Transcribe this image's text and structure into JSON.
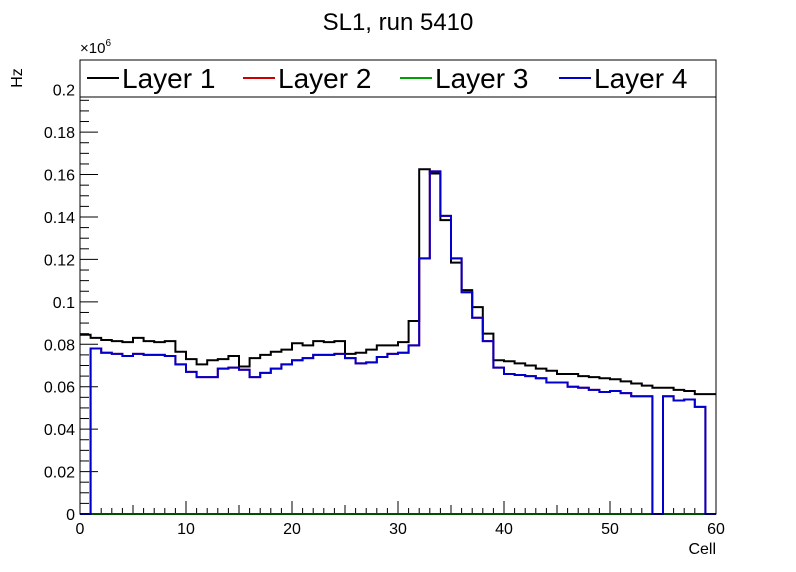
{
  "chart_data": {
    "type": "line",
    "title": "SL1, run 5410",
    "xlabel": "Cell",
    "ylabel": "Hz",
    "y_exponent_label": "×10",
    "y_exponent_power": "6",
    "xlim": [
      0,
      60
    ],
    "ylim": [
      0,
      0.214
    ],
    "x_ticks": [
      0,
      10,
      20,
      30,
      40,
      50,
      60
    ],
    "y_ticks": [
      0,
      0.02,
      0.04,
      0.06,
      0.08,
      0.1,
      0.12,
      0.14,
      0.16,
      0.18,
      0.2
    ],
    "y_tick_labels": [
      "0",
      "0.02",
      "0.04",
      "0.06",
      "0.08",
      "0.1",
      "0.12",
      "0.14",
      "0.16",
      "0.18",
      "0.2"
    ],
    "legend_position": "top",
    "bin_edges_start": 0,
    "bin_width": 1,
    "series": [
      {
        "name": "Layer 1",
        "color": "#000000",
        "values": [
          0.0845,
          0.083,
          0.082,
          0.0815,
          0.081,
          0.083,
          0.0815,
          0.081,
          0.0815,
          0.0765,
          0.073,
          0.0705,
          0.0725,
          0.073,
          0.0745,
          0.0695,
          0.0735,
          0.075,
          0.0765,
          0.0775,
          0.0805,
          0.0795,
          0.0815,
          0.081,
          0.0815,
          0.0755,
          0.076,
          0.0775,
          0.0795,
          0.0795,
          0.081,
          0.091,
          0.1625,
          0.1605,
          0.1385,
          0.1185,
          0.1055,
          0.0975,
          0.085,
          0.0725,
          0.072,
          0.071,
          0.07,
          0.0685,
          0.0675,
          0.066,
          0.066,
          0.065,
          0.0645,
          0.064,
          0.0635,
          0.0625,
          0.0615,
          0.0605,
          0.0595,
          0.0595,
          0.0585,
          0.058,
          0.0565,
          0.0565
        ]
      },
      {
        "name": "Layer 2",
        "color": "#cc0000",
        "values": [
          0,
          0.078,
          0.076,
          0.0755,
          0.0745,
          0.0755,
          0.075,
          0.075,
          0.0745,
          0.0705,
          0.067,
          0.0645,
          0.0645,
          0.0685,
          0.069,
          0.068,
          0.0645,
          0.0665,
          0.0685,
          0.0705,
          0.0725,
          0.0735,
          0.075,
          0.075,
          0.0755,
          0.0735,
          0.071,
          0.0715,
          0.074,
          0.0755,
          0.076,
          0.0795,
          0.1205,
          0.1615,
          0.1405,
          0.1205,
          0.1045,
          0.0925,
          0.0815,
          0.069,
          0.066,
          0.0655,
          0.065,
          0.064,
          0.062,
          0.062,
          0.06,
          0.0595,
          0.0585,
          0.0575,
          0.058,
          0.057,
          0.0555,
          0.0555,
          0,
          0.0555,
          0.0535,
          0.054,
          0.0505,
          0
        ]
      },
      {
        "name": "Layer 3",
        "color": "#00a000",
        "values": [
          0,
          0,
          0,
          0,
          0,
          0,
          0,
          0,
          0,
          0,
          0,
          0,
          0,
          0,
          0,
          0,
          0,
          0,
          0,
          0,
          0,
          0,
          0,
          0,
          0,
          0,
          0,
          0,
          0,
          0,
          0,
          0,
          0,
          0,
          0,
          0,
          0,
          0,
          0,
          0,
          0,
          0,
          0,
          0,
          0,
          0,
          0,
          0,
          0,
          0,
          0,
          0,
          0,
          0,
          0,
          0,
          0,
          0,
          0,
          0
        ]
      },
      {
        "name": "Layer 4",
        "color": "#0000cc",
        "values": [
          0,
          0.078,
          0.076,
          0.0755,
          0.0745,
          0.0755,
          0.075,
          0.075,
          0.0745,
          0.0705,
          0.067,
          0.0645,
          0.0645,
          0.0685,
          0.069,
          0.068,
          0.0645,
          0.0665,
          0.0685,
          0.0705,
          0.0725,
          0.0735,
          0.075,
          0.075,
          0.0755,
          0.0735,
          0.071,
          0.0715,
          0.074,
          0.0755,
          0.076,
          0.0795,
          0.1205,
          0.1615,
          0.1405,
          0.1205,
          0.1045,
          0.0925,
          0.0815,
          0.069,
          0.066,
          0.0655,
          0.065,
          0.064,
          0.062,
          0.062,
          0.06,
          0.0595,
          0.0585,
          0.0575,
          0.058,
          0.057,
          0.0555,
          0.0555,
          0,
          0.0555,
          0.0535,
          0.054,
          0.0505,
          0
        ]
      }
    ]
  }
}
